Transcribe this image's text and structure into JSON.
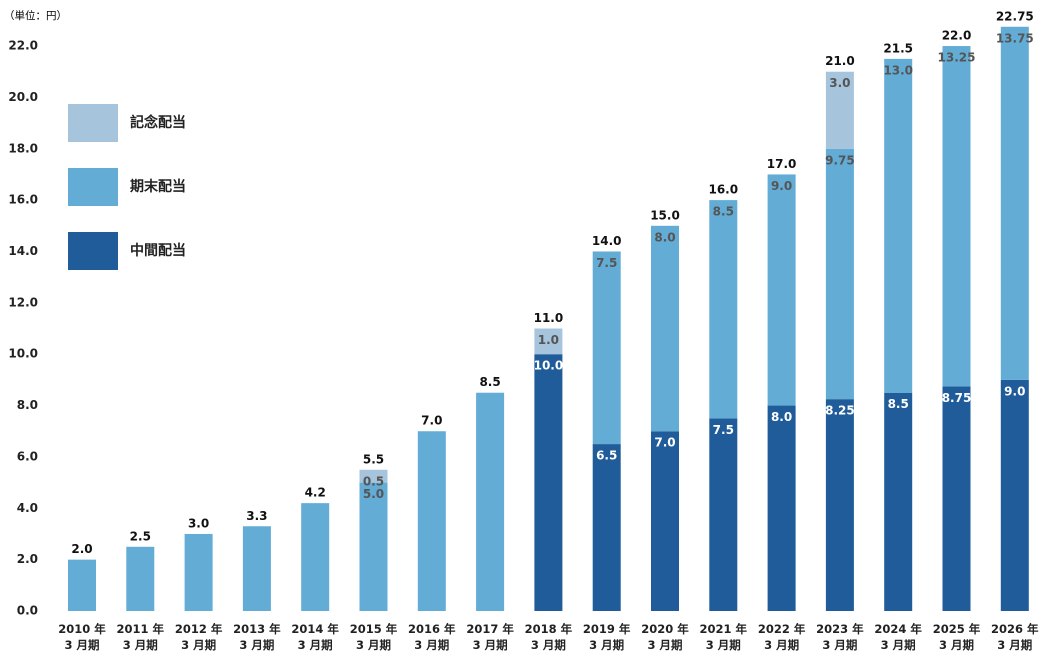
{
  "chart_data": {
    "type": "stacked_bar",
    "unit_label": "（単位：円）",
    "categories": [
      "2010 年\n3 月期",
      "2011 年\n3 月期",
      "2012 年\n3 月期",
      "2013 年\n3 月期",
      "2014 年\n3 月期",
      "2015 年\n3 月期",
      "2016 年\n3 月期",
      "2017 年\n3 月期",
      "2018 年\n3 月期",
      "2019 年\n3 月期",
      "2020 年\n3 月期",
      "2021 年\n3 月期",
      "2022 年\n3 月期",
      "2023 年\n3 月期",
      "2024 年\n3 月期",
      "2025 年\n3 月期",
      "2026 年\n3 月期"
    ],
    "series": [
      {
        "name": "中間配当",
        "color": "#1f5c99",
        "label_color": "#ffffff",
        "values": [
          null,
          null,
          null,
          null,
          null,
          null,
          null,
          null,
          10,
          6.5,
          7,
          7.5,
          8,
          8.25,
          8.5,
          8.75,
          9
        ],
        "value_labels": [
          null,
          null,
          null,
          null,
          null,
          null,
          null,
          null,
          "10.0",
          "6.5",
          "7.0",
          "7.5",
          "8.0",
          "8.25",
          "8.5",
          "8.75",
          "9.0"
        ]
      },
      {
        "name": "期末配当",
        "color": "#62acd6",
        "label_color": "#555555",
        "values": [
          2,
          2.5,
          3,
          3.3,
          4.2,
          5,
          7,
          8.5,
          null,
          7.5,
          8,
          8.5,
          9,
          9.75,
          13,
          13.25,
          13.75
        ],
        "value_labels": [
          null,
          null,
          null,
          null,
          null,
          "5.0",
          null,
          null,
          null,
          "7.5",
          "8.0",
          "8.5",
          "9.0",
          "9.75",
          "13.0",
          "13.25",
          "13.75"
        ]
      },
      {
        "name": "記念配当",
        "color": "#a6c4dc",
        "label_color": "#555555",
        "values": [
          null,
          null,
          null,
          null,
          null,
          0.5,
          null,
          null,
          1,
          null,
          null,
          null,
          null,
          3,
          null,
          null,
          null
        ],
        "value_labels": [
          null,
          null,
          null,
          null,
          null,
          "0.5",
          null,
          null,
          "1.0",
          null,
          null,
          null,
          null,
          "3.0",
          null,
          null,
          null
        ]
      }
    ],
    "totals": {
      "values": [
        2,
        2.5,
        3,
        3.3,
        4.2,
        5.5,
        7,
        8.5,
        11,
        14,
        15,
        16,
        17,
        21,
        21.5,
        22,
        22.75
      ],
      "value_labels": [
        "2.0",
        "2.5",
        "3.0",
        "3.3",
        "4.2",
        "5.5",
        "7.0",
        "8.5",
        "11.0",
        "14.0",
        "15.0",
        "16.0",
        "17.0",
        "21.0",
        "21.5",
        "22.0",
        "22.75"
      ]
    },
    "ylim": [
      0,
      23
    ],
    "yticks": [
      {
        "value": 0,
        "label": "0.0"
      },
      {
        "value": 2,
        "label": "2.0"
      },
      {
        "value": 4,
        "label": "4.0"
      },
      {
        "value": 6,
        "label": "6.0"
      },
      {
        "value": 8,
        "label": "8.0"
      },
      {
        "value": 10,
        "label": "10.0"
      },
      {
        "value": 12,
        "label": "12.0"
      },
      {
        "value": 14,
        "label": "14.0"
      },
      {
        "value": 16,
        "label": "16.0"
      },
      {
        "value": 18,
        "label": "18.0"
      },
      {
        "value": 20,
        "label": "20.0"
      },
      {
        "value": 22,
        "label": "22.0"
      }
    ],
    "grid": false
  }
}
